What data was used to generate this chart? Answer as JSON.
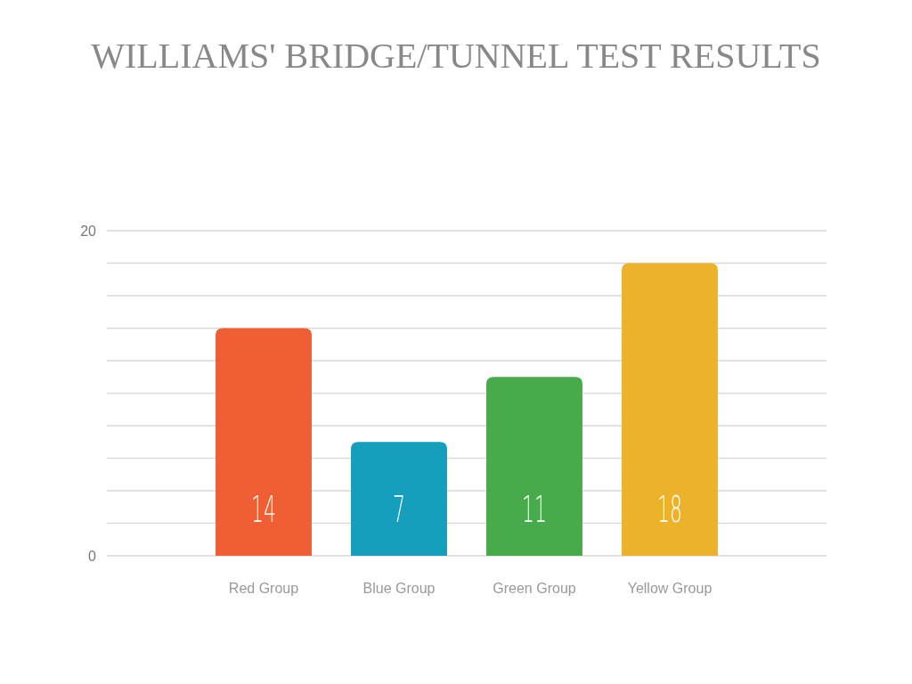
{
  "chart_data": {
    "type": "bar",
    "title": "WILLIAMS' BRIDGE/TUNNEL TEST RESULTS",
    "categories": [
      "Red Group",
      "Blue Group",
      "Green Group",
      "Yellow Group"
    ],
    "values": [
      14,
      7,
      11,
      18
    ],
    "colors": [
      "#f05f33",
      "#159fbc",
      "#47ab4b",
      "#ecb22a"
    ],
    "ylim": [
      0,
      20
    ],
    "yticks": [
      0,
      {
        "value": 2,
        "label": null
      },
      {
        "value": 4,
        "label": null
      },
      {
        "value": 6,
        "label": null
      },
      {
        "value": 8,
        "label": null
      },
      {
        "value": 10,
        "label": null
      },
      {
        "value": 12,
        "label": null
      },
      {
        "value": 14,
        "label": null
      },
      {
        "value": 16,
        "label": null
      },
      {
        "value": 18,
        "label": null
      },
      20
    ],
    "grid": true,
    "data_labels": true
  }
}
